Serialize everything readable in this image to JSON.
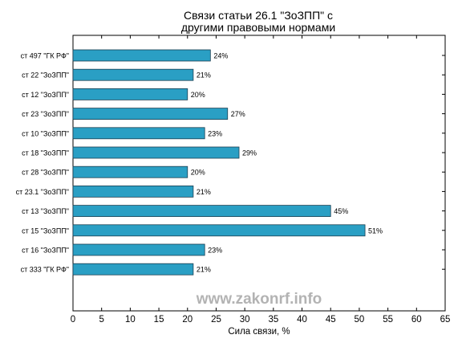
{
  "chart_data": {
    "type": "bar",
    "orientation": "horizontal",
    "title_line1": "Связи статьи 26.1 \"ЗоЗПП\" с",
    "title_line2": "другими правовыми нормами",
    "xlabel": "Сила связи, %",
    "ylabel": "",
    "xlim": [
      0,
      65
    ],
    "xticks": [
      0,
      5,
      10,
      15,
      20,
      25,
      30,
      35,
      40,
      45,
      50,
      55,
      60,
      65
    ],
    "grid": false,
    "bar_color": "#2a9fc4",
    "categories": [
      "ст 497 \"ГК РФ\"",
      "ст 22 \"ЗоЗПП\"",
      "ст 12 \"ЗоЗПП\"",
      "ст 23 \"ЗоЗПП\"",
      "ст 10 \"ЗоЗПП\"",
      "ст 18 \"ЗоЗПП\"",
      "ст 28 \"ЗоЗПП\"",
      "ст 23.1 \"ЗоЗПП\"",
      "ст 13 \"ЗоЗПП\"",
      "ст 15 \"ЗоЗПП\"",
      "ст 16 \"ЗоЗПП\"",
      "ст 333 \"ГК РФ\""
    ],
    "values": [
      24,
      21,
      20,
      27,
      23,
      29,
      20,
      21,
      45,
      51,
      23,
      21
    ],
    "value_labels": [
      "24%",
      "21%",
      "20%",
      "27%",
      "23%",
      "29%",
      "20%",
      "21%",
      "45%",
      "51%",
      "23%",
      "21%"
    ]
  },
  "watermark": "www.zakonrf.info"
}
